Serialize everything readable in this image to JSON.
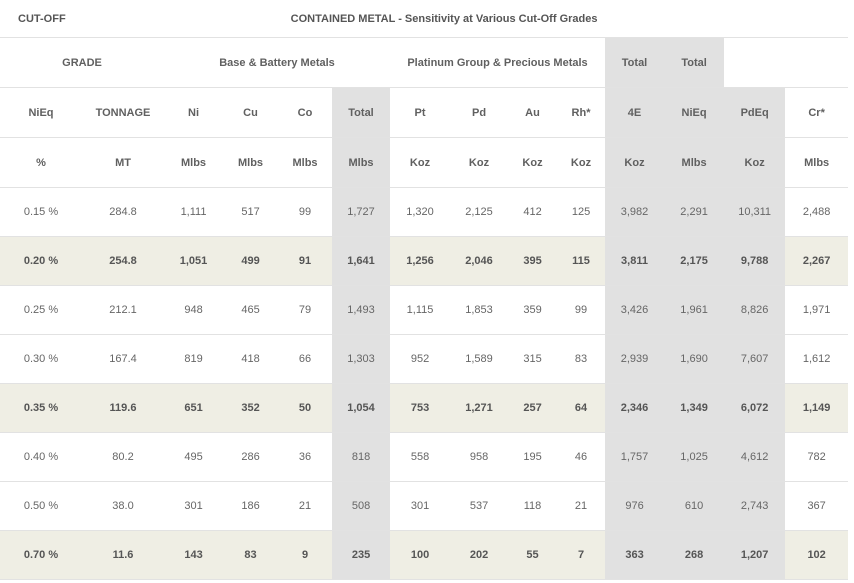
{
  "header": {
    "cutoff": "CUT-OFF",
    "title": "CONTAINED METAL - Sensitivity at Various Cut-Off Grades"
  },
  "groups": {
    "grade": "GRADE",
    "base": "Base & Battery Metals",
    "pgm": "Platinum Group & Precious Metals",
    "total1": "Total",
    "total2": "Total"
  },
  "columns": [
    "NiEq",
    "TONNAGE",
    "Ni",
    "Cu",
    "Co",
    "Total",
    "Pt",
    "Pd",
    "Au",
    "Rh*",
    "4E",
    "NiEq",
    "PdEq",
    "Cr*"
  ],
  "units": [
    "%",
    "MT",
    "Mlbs",
    "Mlbs",
    "Mlbs",
    "Mlbs",
    "Koz",
    "Koz",
    "Koz",
    "Koz",
    "Koz",
    "Mlbs",
    "Koz",
    "Mlbs"
  ],
  "rows": [
    [
      "0.15 %",
      "284.8",
      "1,111",
      "517",
      "99",
      "1,727",
      "1,320",
      "2,125",
      "412",
      "125",
      "3,982",
      "2,291",
      "10,311",
      "2,488"
    ],
    [
      "0.20 %",
      "254.8",
      "1,051",
      "499",
      "91",
      "1,641",
      "1,256",
      "2,046",
      "395",
      "115",
      "3,811",
      "2,175",
      "9,788",
      "2,267"
    ],
    [
      "0.25 %",
      "212.1",
      "948",
      "465",
      "79",
      "1,493",
      "1,115",
      "1,853",
      "359",
      "99",
      "3,426",
      "1,961",
      "8,826",
      "1,971"
    ],
    [
      "0.30 %",
      "167.4",
      "819",
      "418",
      "66",
      "1,303",
      "952",
      "1,589",
      "315",
      "83",
      "2,939",
      "1,690",
      "7,607",
      "1,612"
    ],
    [
      "0.35 %",
      "119.6",
      "651",
      "352",
      "50",
      "1,054",
      "753",
      "1,271",
      "257",
      "64",
      "2,346",
      "1,349",
      "6,072",
      "1,149"
    ],
    [
      "0.40 %",
      "80.2",
      "495",
      "286",
      "36",
      "818",
      "558",
      "958",
      "195",
      "46",
      "1,757",
      "1,025",
      "4,612",
      "782"
    ],
    [
      "0.50 %",
      "38.0",
      "301",
      "186",
      "21",
      "508",
      "301",
      "537",
      "118",
      "21",
      "976",
      "610",
      "2,743",
      "367"
    ],
    [
      "0.70 %",
      "11.6",
      "143",
      "83",
      "9",
      "235",
      "100",
      "202",
      "55",
      "7",
      "363",
      "268",
      "1,207",
      "102"
    ]
  ],
  "highlighted_rows": [
    1,
    4,
    7
  ],
  "colors": {
    "highlight_row": "#efeee4",
    "grey_column": "#e1e1e1",
    "border": "#e2e2e2",
    "text": "#555555"
  }
}
